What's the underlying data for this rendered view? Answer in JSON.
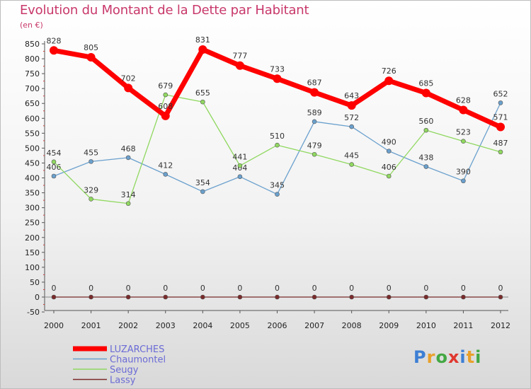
{
  "chart_data": {
    "type": "line",
    "title": "Evolution du Montant de la Dette par Habitant",
    "subtitle": "(en €)",
    "x": [
      "2000",
      "2001",
      "2002",
      "2003",
      "2004",
      "2005",
      "2006",
      "2007",
      "2008",
      "2009",
      "2010",
      "2011",
      "2012"
    ],
    "ylim": [
      -50,
      850
    ],
    "yticks": [
      850,
      800,
      750,
      700,
      650,
      600,
      550,
      500,
      450,
      400,
      350,
      300,
      250,
      200,
      150,
      100,
      50,
      0,
      -50
    ],
    "grid": false,
    "legend_position": "bottom-left",
    "series": [
      {
        "name": "LUZARCHES",
        "color": "#ff0000",
        "values": [
          828,
          805,
          702,
          608,
          831,
          777,
          733,
          687,
          643,
          726,
          685,
          628,
          571
        ]
      },
      {
        "name": "Chaumontel",
        "color": "#6aa0cd",
        "values": [
          406,
          455,
          468,
          412,
          354,
          404,
          345,
          589,
          572,
          490,
          438,
          390,
          652
        ]
      },
      {
        "name": "Seugy",
        "color": "#90d860",
        "values": [
          454,
          329,
          314,
          679,
          655,
          441,
          510,
          479,
          445,
          406,
          560,
          523,
          487
        ]
      },
      {
        "name": "Lassy",
        "color": "#7a2a2a",
        "values": [
          0,
          0,
          0,
          0,
          0,
          0,
          0,
          0,
          0,
          0,
          0,
          0,
          0
        ]
      }
    ]
  },
  "logo": {
    "letters": [
      {
        "ch": "P",
        "color": "#3d7fd4"
      },
      {
        "ch": "r",
        "color": "#e8a02a"
      },
      {
        "ch": "o",
        "color": "#43a843"
      },
      {
        "ch": "x",
        "color": "#e0382f"
      },
      {
        "ch": "i",
        "color": "#3d7fd4"
      },
      {
        "ch": "t",
        "color": "#e8a02a"
      },
      {
        "ch": "i",
        "color": "#43a843"
      }
    ]
  }
}
